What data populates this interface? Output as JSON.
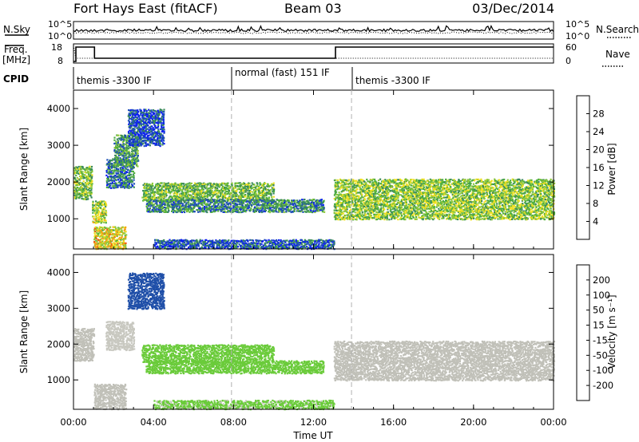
{
  "header": {
    "radar": "Fort Hays East (fitACF)",
    "beam": "Beam 03",
    "date": "03/Dec/2014"
  },
  "colors": {
    "power_scale": [
      "#0b1ef0",
      "#1e4fb8",
      "#3a8a5a",
      "#4fae3e",
      "#8fc83a",
      "#f0e020",
      "#f4a010",
      "#ef5a10",
      "#e31a10"
    ],
    "velocity_scale": [
      "#e31a10",
      "#ef5a10",
      "#f7a828",
      "#c8c8c0",
      "#c8c8c0",
      "#6acb3a",
      "#3fa83a",
      "#1f4fa8",
      "#1020c8"
    ],
    "ground_scatter": "#c0c0b8"
  },
  "chart_data": [
    {
      "type": "line",
      "panel": "noise",
      "left_label": "N.Sky",
      "right_label": "N.Search",
      "left_ticks": [
        "10^5",
        "10^0"
      ],
      "right_ticks": [
        "10^5",
        "10^0"
      ],
      "series": [
        {
          "name": "N.Sky",
          "style": "solid"
        },
        {
          "name": "N.Search",
          "style": "dotted"
        }
      ]
    },
    {
      "type": "line",
      "panel": "frequency",
      "left_label": "Freq.",
      "left_unit": "[MHz]",
      "right_label": "Nave",
      "left_ticks": [
        "18",
        "8"
      ],
      "right_ticks": [
        "60",
        "0"
      ],
      "x_hours": [
        0,
        0.12,
        0.12,
        1.05,
        1.05,
        13.1,
        13.1,
        24
      ],
      "freq_mhz": [
        8,
        8,
        17,
        17,
        10,
        10,
        17,
        17
      ],
      "nave": [
        60,
        12,
        12,
        12,
        12,
        12,
        12,
        12
      ]
    },
    {
      "type": "table",
      "panel": "cpid",
      "label": "CPID",
      "segments": [
        {
          "start_h": 0,
          "end_h": 7.9,
          "name": "themis -3300 IF"
        },
        {
          "start_h": 7.9,
          "end_h": 13.9,
          "name": "normal (fast) 151 IF"
        },
        {
          "start_h": 13.9,
          "end_h": 24,
          "name": "themis -3300 IF"
        }
      ]
    },
    {
      "type": "heatmap",
      "panel": "power",
      "ylabel": "Slant Range [km]",
      "xlabel": "",
      "xlim": [
        0,
        24
      ],
      "ylim": [
        180,
        4500
      ],
      "yticks": [
        1000,
        2000,
        3000,
        4000
      ],
      "colorbar_label": "Power [dB]",
      "colorbar_ticks": [
        "4",
        "8",
        "12",
        "16",
        "20",
        "24",
        "28"
      ],
      "vmin": 0,
      "vmax": 32,
      "regions": [
        {
          "t0": 0.0,
          "t1": 0.9,
          "r0": 1550,
          "r1": 2450,
          "v": 16
        },
        {
          "t0": 0.9,
          "t1": 1.6,
          "r0": 900,
          "r1": 1500,
          "v": 18
        },
        {
          "t0": 1.0,
          "t1": 2.6,
          "r0": 200,
          "r1": 800,
          "v": 22
        },
        {
          "t0": 1.6,
          "t1": 3.0,
          "r0": 1850,
          "r1": 2650,
          "v": 9
        },
        {
          "t0": 2.0,
          "t1": 3.2,
          "r0": 2450,
          "r1": 3300,
          "v": 12
        },
        {
          "t0": 2.7,
          "t1": 4.5,
          "r0": 3000,
          "r1": 4000,
          "v": 5
        },
        {
          "t0": 3.4,
          "t1": 10.0,
          "r0": 1500,
          "r1": 2000,
          "v": 15
        },
        {
          "t0": 3.6,
          "t1": 12.5,
          "r0": 1200,
          "r1": 1550,
          "v": 10
        },
        {
          "t0": 4.0,
          "t1": 13.0,
          "r0": 200,
          "r1": 450,
          "v": 6
        },
        {
          "t0": 13.0,
          "t1": 24.0,
          "r0": 1000,
          "r1": 2100,
          "v": 17
        }
      ]
    },
    {
      "type": "heatmap",
      "panel": "velocity",
      "ylabel": "Slant Range [km]",
      "xlabel": "Time UT",
      "xlim": [
        0,
        24
      ],
      "ylim": [
        180,
        4500
      ],
      "yticks": [
        1000,
        2000,
        3000,
        4000
      ],
      "xticklabels": [
        "00:00",
        "04:00",
        "08:00",
        "12:00",
        "16:00",
        "20:00",
        "00:00"
      ],
      "colorbar_label": "Velocity [m s⁻¹]",
      "colorbar_ticks": [
        "-200",
        "-100",
        "-50",
        "-15",
        "15",
        "50",
        "100",
        "200"
      ],
      "regions": [
        {
          "t0": 0.0,
          "t1": 1.0,
          "r0": 1550,
          "r1": 2450,
          "v": 0,
          "gs": true
        },
        {
          "t0": 1.0,
          "t1": 2.6,
          "r0": 200,
          "r1": 900,
          "v": 0,
          "gs": true
        },
        {
          "t0": 1.6,
          "t1": 3.0,
          "r0": 1850,
          "r1": 2650,
          "v": -40
        },
        {
          "t0": 2.7,
          "t1": 4.5,
          "r0": 3000,
          "r1": 4000,
          "v": 150
        },
        {
          "t0": 3.4,
          "t1": 10.0,
          "r0": 1500,
          "r1": 2000,
          "v": 40
        },
        {
          "t0": 3.6,
          "t1": 12.5,
          "r0": 1200,
          "r1": 1550,
          "v": 30
        },
        {
          "t0": 4.0,
          "t1": 13.0,
          "r0": 200,
          "r1": 450,
          "v": 20
        },
        {
          "t0": 13.0,
          "t1": 24.0,
          "r0": 1000,
          "r1": 2100,
          "v": 0,
          "gs": true
        }
      ]
    }
  ]
}
